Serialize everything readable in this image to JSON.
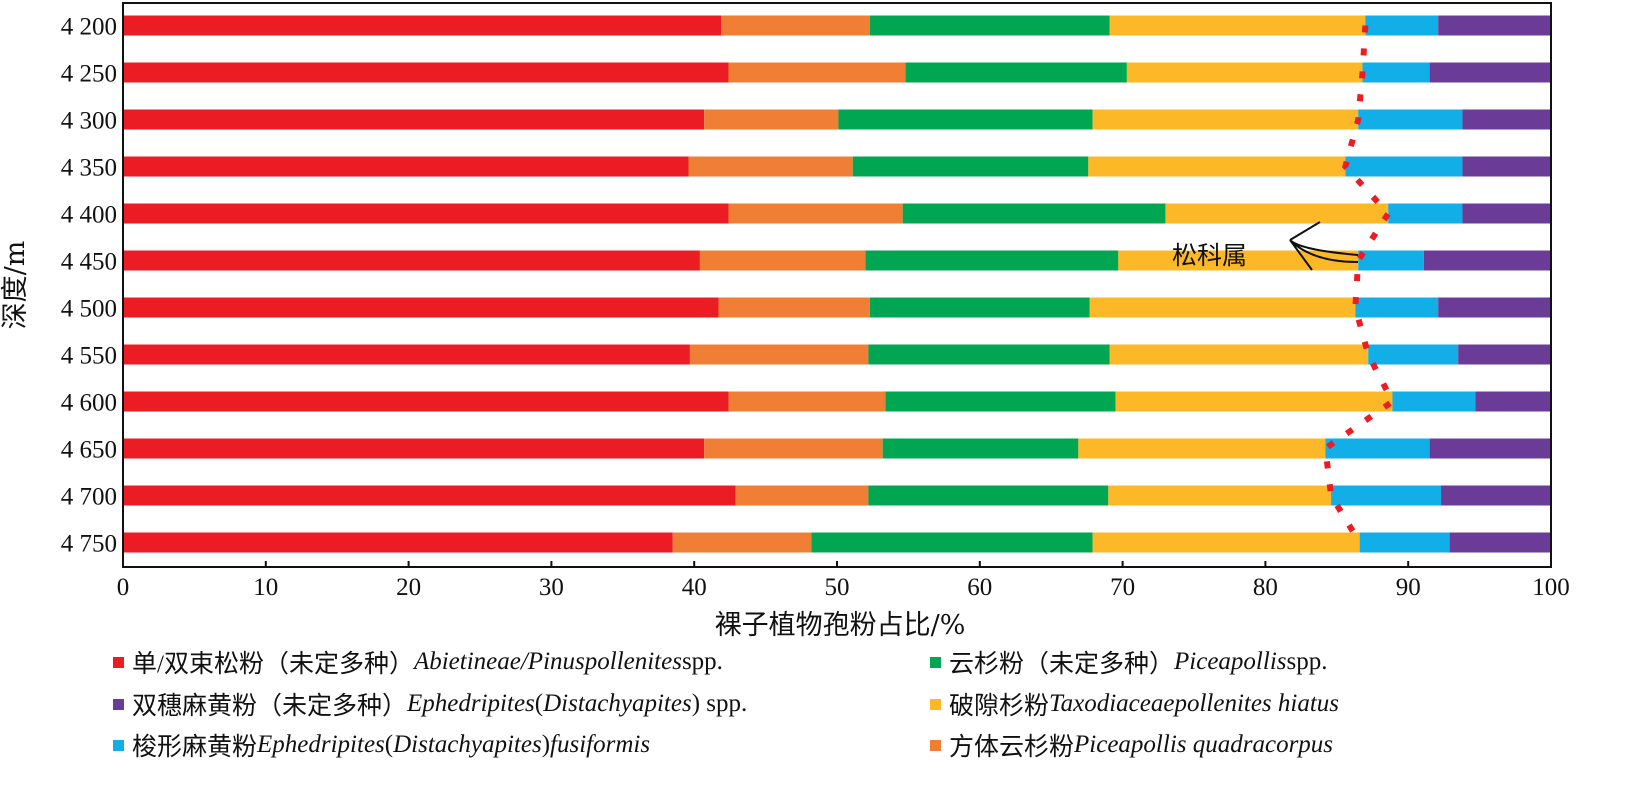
{
  "chart_data": {
    "type": "bar",
    "orientation": "horizontal",
    "stacked": true,
    "xlabel": "裸子植物孢粉占比/%",
    "ylabel": "深度/m",
    "xlim": [
      0,
      100
    ],
    "xticks": [
      "0",
      "10",
      "20",
      "30",
      "40",
      "50",
      "60",
      "70",
      "80",
      "90",
      "100"
    ],
    "categories": [
      "4 200",
      "4 250",
      "4 300",
      "4 350",
      "4 400",
      "4 450",
      "4 500",
      "4 550",
      "4 600",
      "4 650",
      "4 700",
      "4 750"
    ],
    "series": [
      {
        "name": "单/双束松粉（未定多种）Abietineae/Pinuspollenites spp.",
        "color": "#ec1c24",
        "values": [
          41.9,
          42.4,
          40.7,
          39.6,
          42.4,
          40.4,
          41.7,
          39.7,
          42.4,
          40.7,
          42.9,
          38.5
        ]
      },
      {
        "name": "方体云杉粉Piceapollis quadracorpus",
        "color": "#f07f35",
        "values": [
          10.4,
          12.4,
          9.4,
          11.5,
          12.2,
          11.6,
          10.6,
          12.5,
          11.0,
          12.5,
          9.3,
          9.7
        ]
      },
      {
        "name": "云杉粉（未定多种）Piceapollis spp.",
        "color": "#00a651",
        "values": [
          16.8,
          15.5,
          17.8,
          16.5,
          18.4,
          17.7,
          15.4,
          16.9,
          16.1,
          13.7,
          16.8,
          19.7
        ]
      },
      {
        "name": "破隙杉粉Taxodiaceaepollenites hiatus",
        "color": "#fdb827",
        "values": [
          17.9,
          16.5,
          18.6,
          18.0,
          15.6,
          16.8,
          18.6,
          18.1,
          19.4,
          17.3,
          15.6,
          18.7
        ]
      },
      {
        "name": "梭形麻黄粉Ephedripites(Distachyapites)fusiformis",
        "color": "#12aee8",
        "values": [
          5.1,
          4.7,
          7.3,
          8.2,
          5.2,
          4.6,
          5.8,
          6.3,
          5.8,
          7.3,
          7.7,
          6.3
        ]
      },
      {
        "name": "双穗麻黄粉（未定多种）Ephedripites(Distachyapites) spp.",
        "color": "#6b3c97",
        "values": [
          7.9,
          8.5,
          6.2,
          6.2,
          6.2,
          8.9,
          7.9,
          6.5,
          5.3,
          8.5,
          7.7,
          7.1
        ]
      }
    ],
    "annotation": {
      "text": "松科属",
      "boundary_line_color": "#ec1c24"
    },
    "legend": [
      {
        "color": "#ec1c24",
        "parts": [
          {
            "t": "单/双束松粉（未定多种）",
            "i": false
          },
          {
            "t": "Abietineae/Pinuspollenites",
            "i": true
          },
          {
            "t": " spp.",
            "i": false
          }
        ]
      },
      {
        "color": "#00a651",
        "parts": [
          {
            "t": "云杉粉（未定多种）",
            "i": false
          },
          {
            "t": "Piceapollis",
            "i": true
          },
          {
            "t": " spp.",
            "i": false
          }
        ]
      },
      {
        "color": "#6b3c97",
        "parts": [
          {
            "t": "双穗麻黄粉（未定多种）",
            "i": false
          },
          {
            "t": "Ephedripites",
            "i": true
          },
          {
            "t": "(",
            "i": false
          },
          {
            "t": "Distachyapites",
            "i": true
          },
          {
            "t": ") spp.",
            "i": false
          }
        ]
      },
      {
        "color": "#fdb827",
        "parts": [
          {
            "t": "破隙杉粉",
            "i": false
          },
          {
            "t": "Taxodiaceaepollenites hiatus",
            "i": true
          }
        ]
      },
      {
        "color": "#12aee8",
        "parts": [
          {
            "t": "梭形麻黄粉",
            "i": false
          },
          {
            "t": "Ephedripites",
            "i": true
          },
          {
            "t": "(",
            "i": false
          },
          {
            "t": "Distachyapites",
            "i": true
          },
          {
            "t": ")",
            "i": false
          },
          {
            "t": "fusiformis",
            "i": true
          }
        ]
      },
      {
        "color": "#f07f35",
        "parts": [
          {
            "t": "方体云杉粉",
            "i": false
          },
          {
            "t": "Piceapollis quadracorpus",
            "i": true
          }
        ]
      }
    ]
  }
}
